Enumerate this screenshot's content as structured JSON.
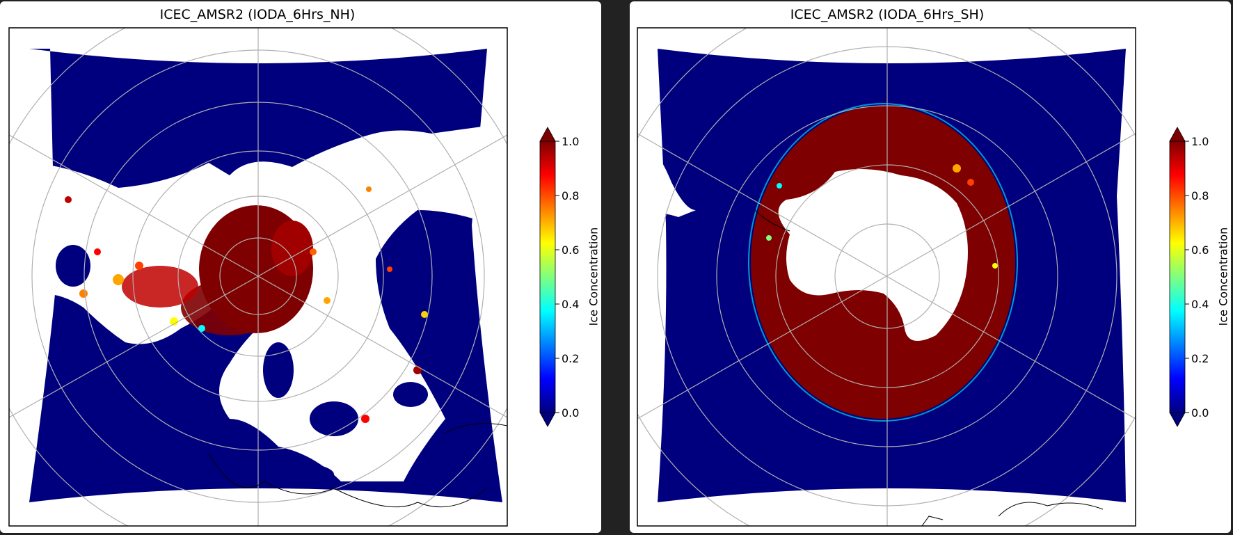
{
  "maps": [
    {
      "title": "ICEC_AMSR2 (IODA_6Hrs_NH)",
      "hemisphere": "north",
      "colorbar": {
        "label": "Ice Concentration",
        "ticks": [
          "0.0",
          "0.2",
          "0.4",
          "0.6",
          "0.8",
          "1.0"
        ],
        "range": [
          0.0,
          1.0
        ],
        "colormap": "jet"
      }
    },
    {
      "title": "ICEC_AMSR2 (IODA_6Hrs_SH)",
      "hemisphere": "south",
      "colorbar": {
        "label": "Ice Concentration",
        "ticks": [
          "0.0",
          "0.2",
          "0.4",
          "0.6",
          "0.8",
          "1.0"
        ],
        "range": [
          0.0,
          1.0
        ],
        "colormap": "jet"
      }
    }
  ],
  "colors": {
    "ocean": "#00007f",
    "ice_full": "#7f0000",
    "land": "#ffffff",
    "background": "#222222"
  }
}
